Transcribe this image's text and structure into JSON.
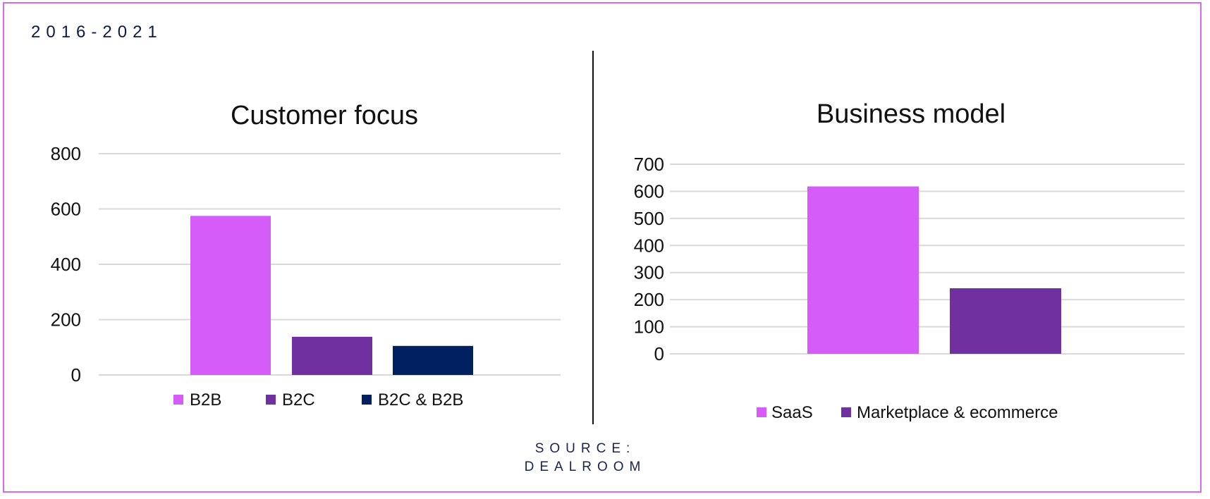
{
  "header": {
    "period": "2016-2021"
  },
  "source": {
    "line1": "SOURCE:",
    "line2": "DEALROOM"
  },
  "colors": {
    "b2b": "#d55cf7",
    "b2c": "#7030a0",
    "b2c_b2b": "#002060",
    "frame": "#d36bec"
  },
  "chart_data": [
    {
      "type": "bar",
      "title": "Customer focus",
      "categories": [
        "B2B",
        "B2C",
        "B2C & B2B"
      ],
      "values": [
        575,
        138,
        105
      ],
      "colors": [
        "#d55cf7",
        "#7030a0",
        "#002060"
      ],
      "ylim": [
        0,
        800
      ],
      "yticks": [
        0,
        200,
        400,
        600,
        800
      ],
      "grid": true,
      "legend": "bottom"
    },
    {
      "type": "bar",
      "title": "Business model",
      "categories": [
        "SaaS",
        "Marketplace & ecommerce"
      ],
      "values": [
        618,
        242
      ],
      "colors": [
        "#d55cf7",
        "#7030a0"
      ],
      "ylim": [
        0,
        700
      ],
      "yticks": [
        0,
        100,
        200,
        300,
        400,
        500,
        600,
        700
      ],
      "grid": true,
      "legend": "bottom"
    }
  ]
}
